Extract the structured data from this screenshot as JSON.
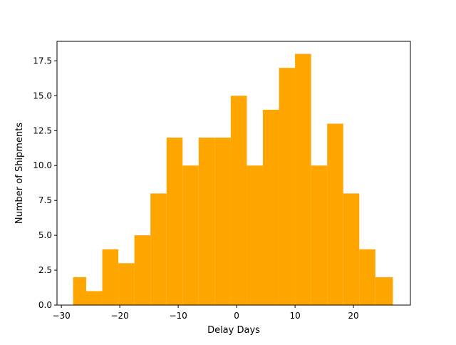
{
  "chart_data": {
    "type": "bar",
    "title": "",
    "xlabel": "Delay Days",
    "ylabel": "Number of Shipments",
    "bar_color": "#FFA500",
    "xlim": [
      -30.75,
      29.75
    ],
    "ylim": [
      0,
      18.9
    ],
    "grid": false,
    "bins": [
      {
        "x0": -28.0,
        "x1": -25.75,
        "count": 2
      },
      {
        "x0": -25.75,
        "x1": -23.0,
        "count": 1
      },
      {
        "x0": -23.0,
        "x1": -20.25,
        "count": 4
      },
      {
        "x0": -20.25,
        "x1": -17.5,
        "count": 3
      },
      {
        "x0": -17.5,
        "x1": -14.75,
        "count": 5
      },
      {
        "x0": -14.75,
        "x1": -12.0,
        "count": 8
      },
      {
        "x0": -12.0,
        "x1": -9.25,
        "count": 12
      },
      {
        "x0": -9.25,
        "x1": -6.5,
        "count": 10
      },
      {
        "x0": -6.5,
        "x1": -3.75,
        "count": 12
      },
      {
        "x0": -3.75,
        "x1": -1.0,
        "count": 12
      },
      {
        "x0": -1.0,
        "x1": 1.75,
        "count": 15
      },
      {
        "x0": 1.75,
        "x1": 4.5,
        "count": 10
      },
      {
        "x0": 4.5,
        "x1": 7.25,
        "count": 14
      },
      {
        "x0": 7.25,
        "x1": 10.0,
        "count": 17
      },
      {
        "x0": 10.0,
        "x1": 12.75,
        "count": 18
      },
      {
        "x0": 12.75,
        "x1": 15.5,
        "count": 10
      },
      {
        "x0": 15.5,
        "x1": 18.25,
        "count": 13
      },
      {
        "x0": 18.25,
        "x1": 21.0,
        "count": 8
      },
      {
        "x0": 21.0,
        "x1": 23.75,
        "count": 4
      },
      {
        "x0": 23.75,
        "x1": 26.75,
        "count": 2
      }
    ],
    "xticks": [
      -30,
      -20,
      -10,
      0,
      10,
      20
    ],
    "xtick_labels": [
      "−30",
      "−20",
      "−10",
      "0",
      "10",
      "20"
    ],
    "yticks": [
      0,
      2.5,
      5,
      7.5,
      10,
      12.5,
      15,
      17.5
    ],
    "ytick_labels": [
      "0.0",
      "2.5",
      "5.0",
      "7.5",
      "10.0",
      "12.5",
      "15.0",
      "17.5"
    ]
  }
}
